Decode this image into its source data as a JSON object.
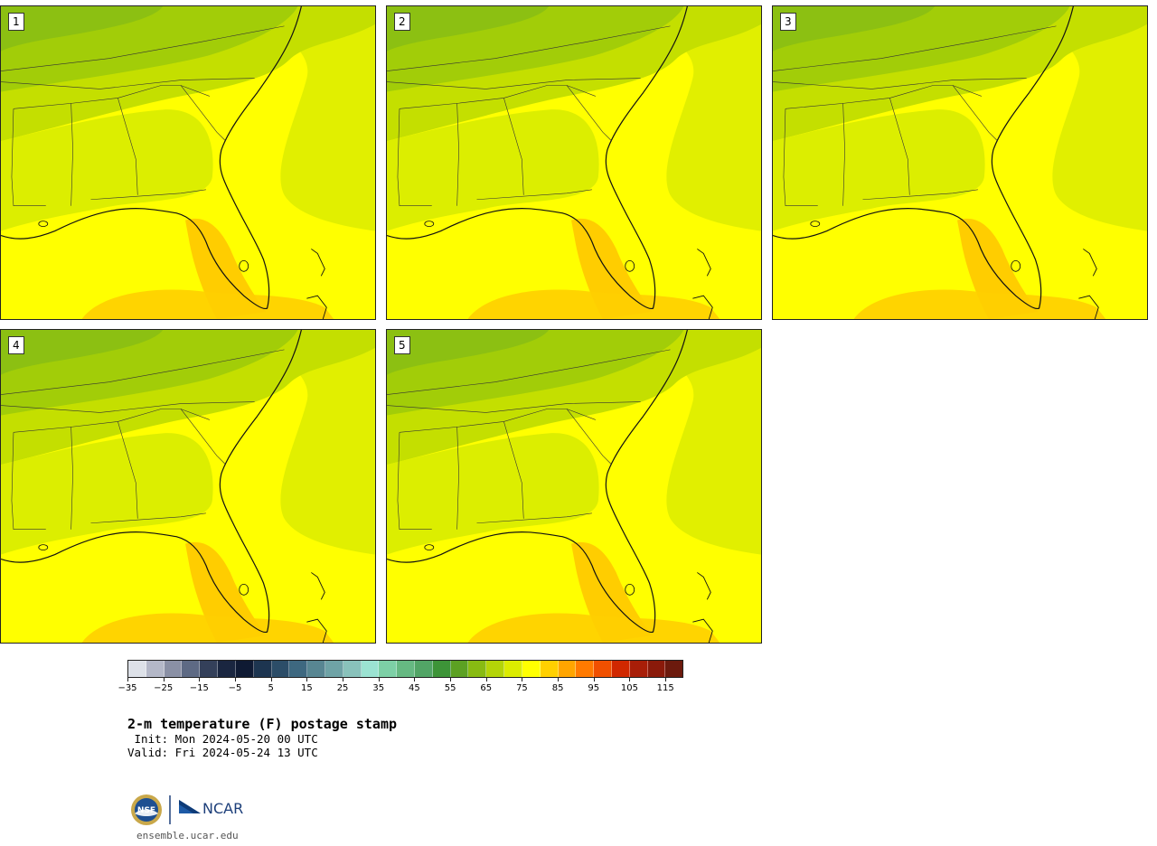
{
  "panels": [
    {
      "label": "1"
    },
    {
      "label": "2"
    },
    {
      "label": "3"
    },
    {
      "label": "4"
    },
    {
      "label": "5"
    }
  ],
  "colorbar": {
    "colors": [
      "#dde1e8",
      "#b4b8c8",
      "#8a90a5",
      "#5e6a84",
      "#34405a",
      "#1a2640",
      "#0f1a33",
      "#1d3550",
      "#2c4d68",
      "#3e6880",
      "#588692",
      "#6fa3a6",
      "#89c2bb",
      "#9be3d2",
      "#7dd0a6",
      "#66b982",
      "#52a566",
      "#3d9438",
      "#5ca123",
      "#88bb12",
      "#b4d408",
      "#dcec00",
      "#ffff00",
      "#ffd000",
      "#ffa500",
      "#ff7a00",
      "#f05000",
      "#d02800",
      "#a81e08",
      "#8a1a0a",
      "#6c1a0d"
    ],
    "tick_labels": [
      "−35",
      "−25",
      "−15",
      "−5",
      "5",
      "15",
      "25",
      "35",
      "45",
      "55",
      "65",
      "75",
      "85",
      "95",
      "105",
      "115"
    ],
    "vmin": -35,
    "vmax": 120
  },
  "title": "2-m temperature (F) postage stamp",
  "init": " Init: Mon 2024-05-20 00 UTC",
  "valid": "Valid: Fri 2024-05-24 13 UTC",
  "logo": {
    "nsf": "NSF",
    "ncar": "NCAR"
  },
  "site": "ensemble.ucar.edu"
}
